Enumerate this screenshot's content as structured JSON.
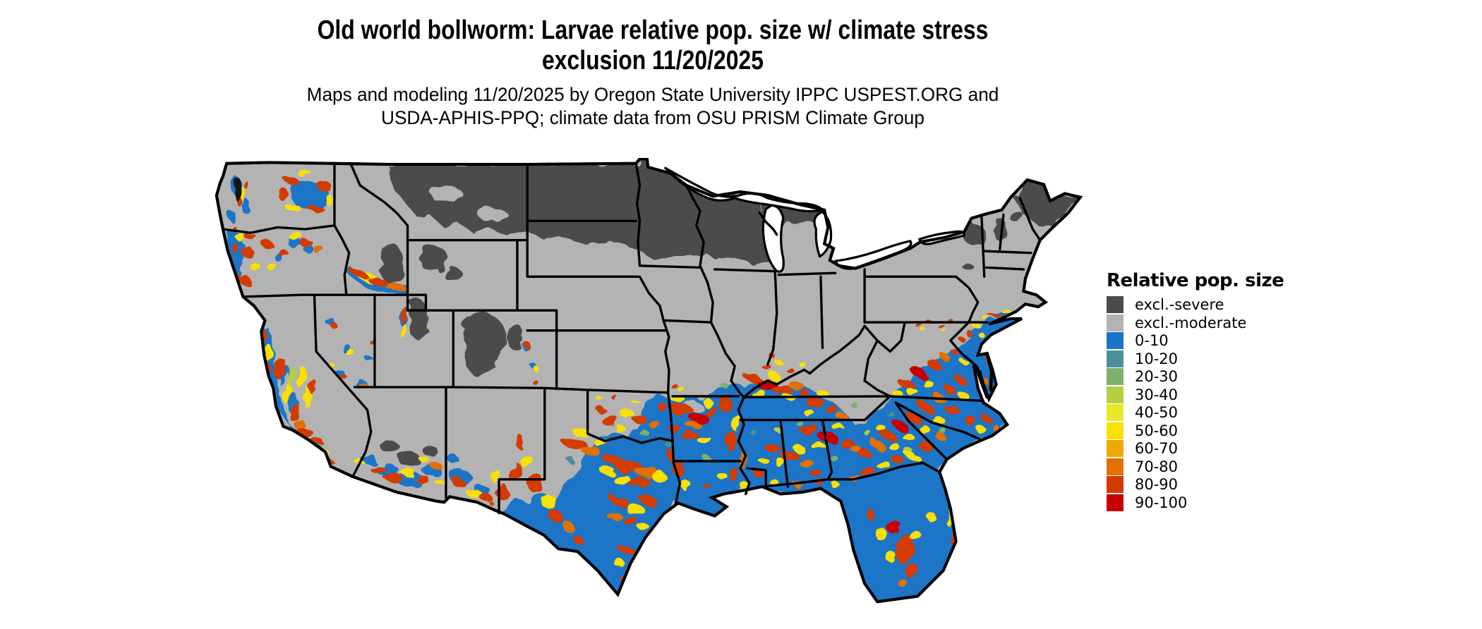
{
  "figure": {
    "title_line1": "Old world bollworm: Larvae relative pop. size w/ climate stress",
    "title_line2": "exclusion 11/20/2025",
    "subtitle_line1": "Maps and modeling 11/20/2025 by Oregon State University IPPC USPEST.ORG and",
    "subtitle_line2": "USDA-APHIS-PPQ; climate data from OSU PRISM Climate Group"
  },
  "map": {
    "region": "Contiguous United States",
    "kind": "raster pest risk map with state boundaries",
    "date_shown": "11/20/2025",
    "colors": {
      "background": "#ffffff",
      "state_border": "#000000",
      "excl_severe": "#4b4b4b",
      "excl_moderate": "#b3b3b3",
      "base_population": "#1b74c7"
    }
  },
  "legend": {
    "title": "Relative pop. size",
    "items": [
      {
        "label": "excl.-severe",
        "color": "#4b4b4b"
      },
      {
        "label": "excl.-moderate",
        "color": "#b3b3b3"
      },
      {
        "label": "0-10",
        "color": "#1b74c7"
      },
      {
        "label": "10-20",
        "color": "#4a909b"
      },
      {
        "label": "20-30",
        "color": "#7bb16c"
      },
      {
        "label": "30-40",
        "color": "#b4cf44"
      },
      {
        "label": "40-50",
        "color": "#e8e82b"
      },
      {
        "label": "50-60",
        "color": "#f8e000"
      },
      {
        "label": "60-70",
        "color": "#eeaa00"
      },
      {
        "label": "70-80",
        "color": "#e17101"
      },
      {
        "label": "80-90",
        "color": "#d43a00"
      },
      {
        "label": "90-100",
        "color": "#c80000"
      }
    ]
  }
}
